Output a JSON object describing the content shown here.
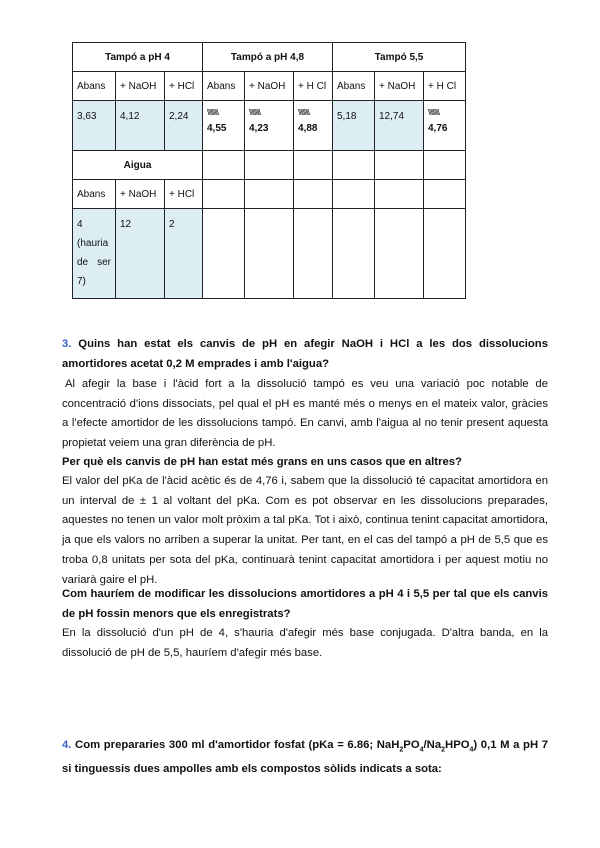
{
  "table": {
    "groups": [
      "Tampó a pH 4",
      "Tampó a pH 4,8",
      "Tampó 5,5"
    ],
    "subheaders": [
      "Abans",
      "+ NaOH",
      "+ HCl",
      "Abans",
      "+ NaOH",
      "+ H Cl",
      "Abans",
      "+ NaOH",
      "+ H Cl"
    ],
    "values": [
      "3,63",
      "4,12",
      "2,24",
      "4,55",
      "4,23",
      "4,88",
      "5,18",
      "12,74",
      "4,76"
    ],
    "wave_mark": "\\\\\\\\\\\\\\\\\\",
    "water_title": "Aigua",
    "water_subheaders": [
      "Abans",
      "+ NaOH",
      "+ HCl"
    ],
    "water_values": [
      "4 (hauria de ser 7)",
      "12",
      "2"
    ],
    "shade_color": "#dcedf3"
  },
  "q3": {
    "number": "3.",
    "question": "Quins han estat els canvis de pH en afegir NaOH i HCl a les dos dissolucions amortidores acetat 0,2 M emprades i amb l'aigua?",
    "answer": "Al afegir la base i l'àcid fort a la dissolució tampó es veu una variació poc notable de concentració d'ions dissociats, pel qual el pH es manté més o menys en el mateix valor, gràcies a l'efecte amortidor de les dissolucions tampó. En canvi, amb l'aigua al no tenir present aquesta propietat veiem una gran diferència de pH.",
    "question2": "Per què els canvis de pH han estat més grans en uns casos que en altres?",
    "answer2": "El valor del pKa de l'àcid acètic és de 4,76 i, sabem que la dissolució té capacitat amortidora en un interval de ± 1 al voltant del pKa. Com es pot observar en les dissolucions preparades, aquestes no tenen un valor molt pròxim a tal pKa. Tot i això, continua tenint capacitat amortidora, ja que els valors no arriben a superar la unitat. Per tant, en el cas del tampó a pH de 5,5 que es troba 0,8 unitats per sota del pKa, continuarà tenint capacitat amortidora i per aquest motiu no variarà gaire el pH.",
    "question3": "Com hauríem de modificar les dissolucions amortidores a pH 4 i 5,5 per tal que els canvis de pH fossin menors que els enregistrats?",
    "answer3": "En la dissolució d'un pH de 4, s'hauria d'afegir més base conjugada. D'altra banda, en la dissolució de pH de 5,5, hauríem d'afegir més base."
  },
  "q4": {
    "number": "4.",
    "part1": "Com prepararies 300 ml d'amortidor fosfat (pKa = 6.86; NaH",
    "s1": "2",
    "part2": "PO",
    "s2": "4",
    "part3": "/Na",
    "s3": "2",
    "part4": "HPO",
    "s4": "4",
    "part5": ") 0,1 M a pH 7 si tinguessis dues ampolles amb els compostos sòlids indicats a sota:"
  }
}
